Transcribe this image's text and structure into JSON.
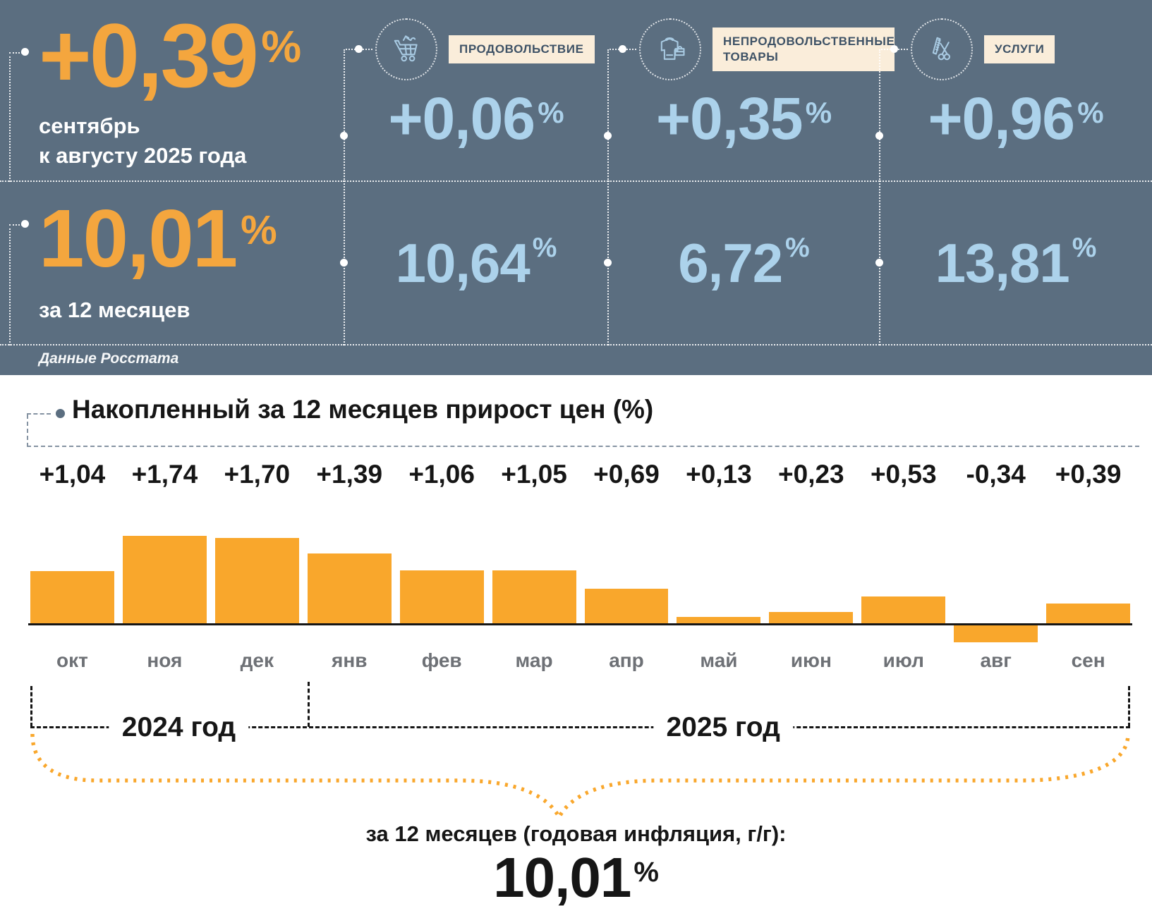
{
  "colors": {
    "panel_bg": "#5B6E80",
    "headline_orange": "#F4A63E",
    "value_blue": "#ACD2EB",
    "chip_bg": "#FAEDDA",
    "chip_text": "#3E5266",
    "icon_stroke": "#A9CBE3",
    "bar_orange": "#F9A72C",
    "month_gray": "#6E7176",
    "dash_slate": "#8593A2",
    "text_black": "#161616",
    "page_bg": "#FFFFFF"
  },
  "top_panel": {
    "percent_sign": "%",
    "headline": {
      "value": "+0,39",
      "period_line1": "сентябрь",
      "period_line2": "к августу 2025 года"
    },
    "annual": {
      "value": "10,01",
      "label": "за 12 месяцев"
    },
    "source": "Данные Росстата",
    "categories": [
      {
        "label": "ПРОДОВОЛЬСТВИЕ",
        "icon": "shopping-cart-icon",
        "monthly": "+0,06",
        "annual": "10,64"
      },
      {
        "label": "НЕПРОДОВОЛЬСТВЕННЫЕ ТОВАРЫ",
        "icon": "clothing-bag-icon",
        "monthly": "+0,35",
        "annual": "6,72"
      },
      {
        "label": "УСЛУГИ",
        "icon": "scissors-comb-icon",
        "monthly": "+0,96",
        "annual": "13,81"
      }
    ]
  },
  "chart_data": {
    "type": "bar",
    "title": "Накопленный за 12 месяцев прирост цен (%)",
    "categories": [
      "окт",
      "ноя",
      "дек",
      "янв",
      "фев",
      "мар",
      "апр",
      "май",
      "июн",
      "июл",
      "авг",
      "сен"
    ],
    "values": [
      1.04,
      1.74,
      1.7,
      1.39,
      1.06,
      1.05,
      0.69,
      0.13,
      0.23,
      0.53,
      -0.34,
      0.39
    ],
    "value_labels": [
      "+1,04",
      "+1,74",
      "+1,70",
      "+1,39",
      "+1,06",
      "+1,05",
      "+0,69",
      "+0,13",
      "+0,23",
      "+0,53",
      "-0,34",
      "+0,39"
    ],
    "xlabel": "",
    "ylabel": "",
    "ylim": [
      -0.5,
      2.0
    ],
    "grid": false,
    "legend": false,
    "bar_color": "#F9A72C",
    "year_groups": [
      {
        "label": "2024 год",
        "months": [
          "окт",
          "ноя",
          "дек"
        ]
      },
      {
        "label": "2025 год",
        "months": [
          "янв",
          "фев",
          "мар",
          "апр",
          "май",
          "июн",
          "июл",
          "авг",
          "сен"
        ]
      }
    ]
  },
  "footer": {
    "caption": "за 12 месяцев (годовая инфляция, г/г):",
    "value": "10,01",
    "percent_sign": "%"
  }
}
